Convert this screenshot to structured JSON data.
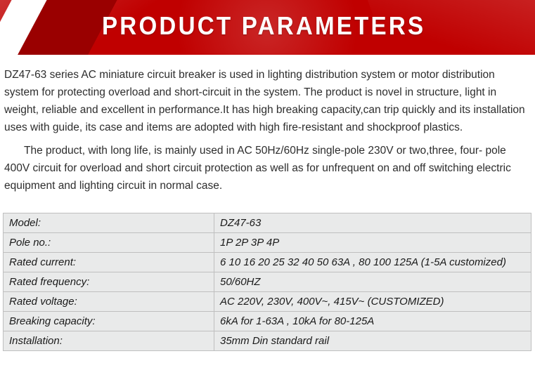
{
  "banner": {
    "title": "PRODUCT PARAMETERS",
    "bg_color": "#c00000",
    "text_color": "#ffffff"
  },
  "description": {
    "para1": "DZ47-63 series AC miniature circuit breaker is used in lighting distribution system or motor distribution system for protecting overload and short-circuit in the system. The product is novel in structure, light in weight, reliable and excellent in performance.It has high breaking capacity,can trip quickly and its installation uses with guide, its case and items are adopted with high fire-resistant and shockproof plastics.",
    "para2": "The product, with long life, is mainly used in AC 50Hz/60Hz single-pole 230V or two,three, four- pole 400V circuit for overload and short circuit protection as well as for unfrequent on and off switching electric equipment and lighting circuit in normal case."
  },
  "spec_table": {
    "rows": [
      {
        "key": "Model:",
        "value": "DZ47-63"
      },
      {
        "key": "Pole no.:",
        "value": "1P 2P 3P 4P"
      },
      {
        "key": "Rated current:",
        "value": "6 10 16 20 25 32 40 50 63A ,  80 100 125A   (1-5A customized)"
      },
      {
        "key": "Rated frequency:",
        "value": "50/60HZ"
      },
      {
        "key": "Rated voltage:",
        "value": "AC 220V, 230V, 400V~, 415V~ (CUSTOMIZED)"
      },
      {
        "key": "Breaking capacity:",
        "value": "6kA for 1-63A , 10kA for 80-125A"
      },
      {
        "key": "Installation:",
        "value": "35mm Din standard rail"
      }
    ],
    "border_color": "#bfbfbf",
    "cell_bg": "#e9eaea",
    "font_style": "italic"
  }
}
